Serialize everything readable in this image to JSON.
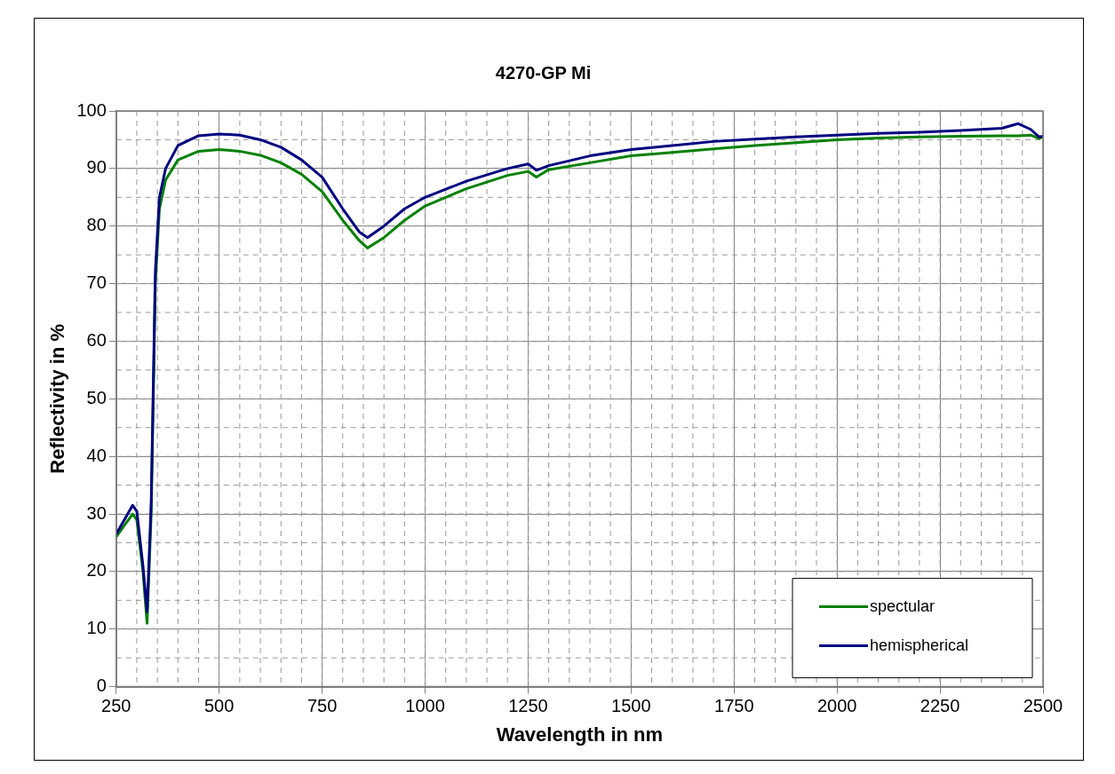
{
  "chart_data": {
    "type": "line",
    "title": "4270-GP Mi",
    "xlabel": "Wavelength in nm",
    "ylabel": "Reflectivity in %",
    "x": [
      250,
      270,
      290,
      300,
      315,
      325,
      335,
      345,
      355,
      370,
      400,
      450,
      500,
      550,
      600,
      650,
      700,
      750,
      800,
      840,
      860,
      900,
      950,
      1000,
      1100,
      1200,
      1250,
      1270,
      1300,
      1400,
      1500,
      1600,
      1700,
      1800,
      1900,
      2000,
      2100,
      2200,
      2300,
      2400,
      2440,
      2470,
      2490,
      2500
    ],
    "series": [
      {
        "name": "spectular",
        "color": "#008000",
        "values": [
          26,
          28,
          30,
          29,
          20,
          11,
          30,
          70,
          83,
          88,
          91.5,
          93,
          93.3,
          93,
          92.3,
          91,
          89,
          86,
          81,
          77.5,
          76.2,
          78,
          81,
          83.5,
          86.5,
          88.8,
          89.5,
          88.5,
          89.8,
          91,
          92.2,
          92.8,
          93.4,
          94,
          94.5,
          95,
          95.3,
          95.5,
          95.6,
          95.7,
          95.7,
          95.8,
          95.2,
          95.5
        ]
      },
      {
        "name": "hemispherical",
        "color": "#000080",
        "values": [
          26.5,
          29,
          31.5,
          30.5,
          21,
          13,
          32,
          72,
          85,
          90,
          94,
          95.7,
          96,
          95.8,
          95,
          93.7,
          91.5,
          88.5,
          83,
          79,
          78,
          80,
          83,
          85,
          87.8,
          90,
          90.8,
          89.7,
          90.5,
          92.2,
          93.3,
          94,
          94.7,
          95.1,
          95.5,
          95.8,
          96.1,
          96.3,
          96.6,
          97,
          97.8,
          96.8,
          95.5,
          95.6
        ]
      }
    ],
    "xlim": [
      250,
      2500
    ],
    "xticks": [
      250,
      500,
      750,
      1000,
      1250,
      1500,
      1750,
      2000,
      2250,
      2500
    ],
    "ylim": [
      0,
      100
    ],
    "yticks": [
      0,
      10,
      20,
      30,
      40,
      50,
      60,
      70,
      80,
      90,
      100
    ],
    "grid": true,
    "legend": "bottom right",
    "marker": "none",
    "line_style": "solid"
  }
}
